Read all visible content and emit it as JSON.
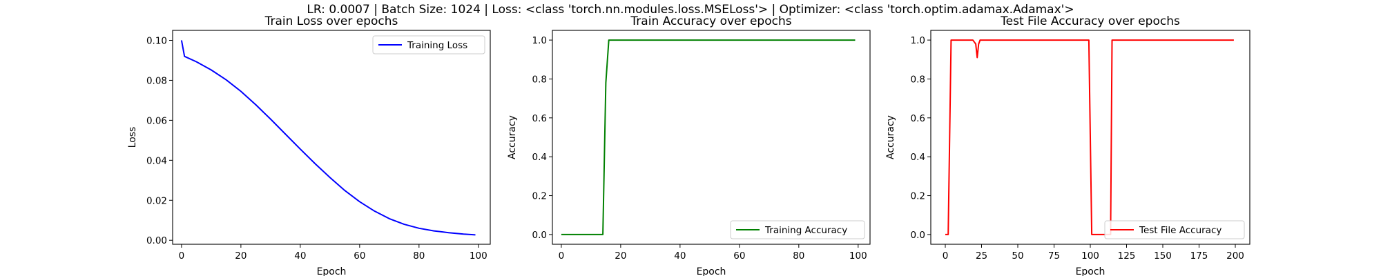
{
  "figure": {
    "suptitle": "LR: 0.0007 | Batch Size: 1024 | Loss: <class 'torch.nn.modules.loss.MSELoss'> | Optimizer: <class 'torch.optim.adamax.Adamax'>"
  },
  "chart_data": [
    {
      "type": "line",
      "title": "Train Loss over epochs",
      "xlabel": "Epoch",
      "ylabel": "Loss",
      "xlim": [
        -3,
        104
      ],
      "ylim": [
        -0.002,
        0.105
      ],
      "xticks": [
        0,
        20,
        40,
        60,
        80,
        100
      ],
      "yticks": [
        0.0,
        0.02,
        0.04,
        0.06,
        0.08,
        0.1
      ],
      "ytick_labels": [
        "0.00",
        "0.02",
        "0.04",
        "0.06",
        "0.08",
        "0.10"
      ],
      "xtick_labels": [
        "0",
        "20",
        "40",
        "60",
        "80",
        "100"
      ],
      "grid": false,
      "legend_position": "upper right",
      "series": [
        {
          "name": "Training Loss",
          "color": "#0000ff",
          "x": [
            0,
            1,
            5,
            10,
            15,
            20,
            25,
            30,
            35,
            40,
            45,
            50,
            55,
            60,
            65,
            70,
            75,
            80,
            85,
            90,
            95,
            99
          ],
          "y": [
            0.1,
            0.092,
            0.0893,
            0.0852,
            0.0803,
            0.0745,
            0.0678,
            0.0606,
            0.0531,
            0.0456,
            0.0383,
            0.0314,
            0.0249,
            0.0193,
            0.0146,
            0.0108,
            0.008,
            0.006,
            0.0047,
            0.0038,
            0.0031,
            0.0027
          ]
        }
      ]
    },
    {
      "type": "line",
      "title": "Train Accuracy over epochs",
      "xlabel": "Epoch",
      "ylabel": "Accuracy",
      "xlim": [
        -3,
        104
      ],
      "ylim": [
        -0.05,
        1.05
      ],
      "xticks": [
        0,
        20,
        40,
        60,
        80,
        100
      ],
      "yticks": [
        0.0,
        0.2,
        0.4,
        0.6,
        0.8,
        1.0
      ],
      "ytick_labels": [
        "0.0",
        "0.2",
        "0.4",
        "0.6",
        "0.8",
        "1.0"
      ],
      "xtick_labels": [
        "0",
        "20",
        "40",
        "60",
        "80",
        "100"
      ],
      "grid": false,
      "legend_position": "lower right",
      "series": [
        {
          "name": "Training Accuracy",
          "color": "#008000",
          "x": [
            0,
            14,
            15,
            16,
            99
          ],
          "y": [
            0.0,
            0.0,
            0.78,
            1.0,
            1.0
          ]
        }
      ]
    },
    {
      "type": "line",
      "title": "Test File Accuracy over epochs",
      "xlabel": "Epoch",
      "ylabel": "Accuracy",
      "xlim": [
        -10,
        210
      ],
      "ylim": [
        -0.05,
        1.05
      ],
      "xticks": [
        0,
        25,
        50,
        75,
        100,
        125,
        150,
        175,
        200
      ],
      "yticks": [
        0.0,
        0.2,
        0.4,
        0.6,
        0.8,
        1.0
      ],
      "ytick_labels": [
        "0.0",
        "0.2",
        "0.4",
        "0.6",
        "0.8",
        "1.0"
      ],
      "xtick_labels": [
        "0",
        "25",
        "50",
        "75",
        "100",
        "125",
        "150",
        "175",
        "200"
      ],
      "grid": false,
      "legend_position": "lower right",
      "series": [
        {
          "name": "Test File Accuracy",
          "color": "#ff0000",
          "x": [
            0,
            2,
            4,
            19,
            21,
            22,
            23,
            24,
            99,
            100,
            101,
            114,
            115,
            199
          ],
          "y": [
            0.0,
            0.0,
            1.0,
            1.0,
            0.98,
            0.91,
            0.98,
            1.0,
            1.0,
            0.5,
            0.0,
            0.0,
            1.0,
            1.0
          ]
        }
      ]
    }
  ]
}
